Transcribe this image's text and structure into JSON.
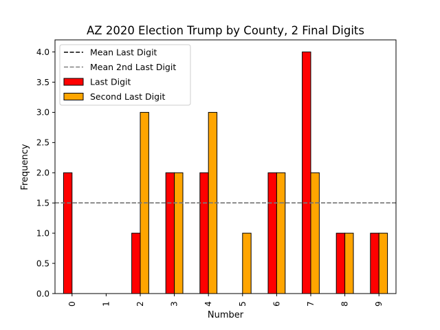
{
  "chart_data": {
    "type": "bar",
    "title": "AZ 2020 Election Trump by County, 2 Final Digits",
    "xlabel": "Number",
    "ylabel": "Frequency",
    "categories": [
      "0",
      "1",
      "2",
      "3",
      "4",
      "5",
      "6",
      "7",
      "8",
      "9"
    ],
    "yticks": [
      "0.0",
      "0.5",
      "1.0",
      "1.5",
      "2.0",
      "2.5",
      "3.0",
      "3.5",
      "4.0"
    ],
    "ylim": [
      0,
      4.2
    ],
    "grid": false,
    "legend_position": "top-left",
    "series": [
      {
        "name": "Last Digit",
        "color": "#ff0000",
        "values": [
          2,
          0,
          1,
          2,
          2,
          0,
          2,
          4,
          1,
          1
        ]
      },
      {
        "name": "Second Last Digit",
        "color": "#ffa500",
        "values": [
          0,
          0,
          3,
          2,
          3,
          1,
          2,
          2,
          1,
          1
        ]
      }
    ],
    "reference_lines": [
      {
        "name": "Mean Last Digit",
        "value": 1.5,
        "color": "#000000",
        "style": "dashed"
      },
      {
        "name": "Mean 2nd Last Digit",
        "value": 1.5,
        "color": "#808080",
        "style": "dashed"
      }
    ]
  }
}
